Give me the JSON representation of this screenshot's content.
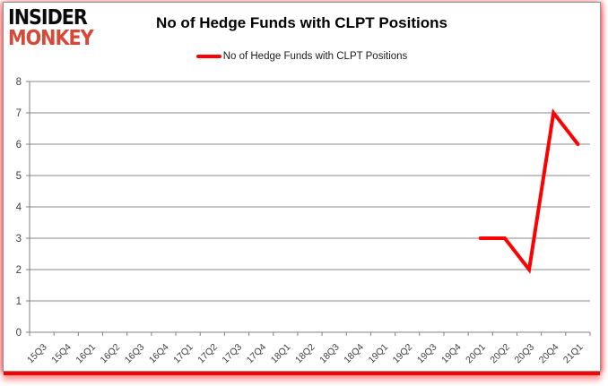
{
  "brand": {
    "line1": "INSIDER",
    "line2": "MONKEY",
    "accent_color": "#d64937"
  },
  "header": {
    "title": "No of Hedge Funds with CLPT Positions"
  },
  "legend": {
    "label": "No of Hedge Funds with CLPT Positions",
    "swatch_color": "#ff0000"
  },
  "chart_data": {
    "type": "line",
    "title": "No of Hedge Funds with CLPT Positions",
    "xlabel": "",
    "ylabel": "",
    "categories": [
      "15Q3",
      "15Q4",
      "16Q1",
      "16Q2",
      "16Q3",
      "16Q4",
      "17Q1",
      "17Q2",
      "17Q3",
      "17Q4",
      "18Q1",
      "18Q2",
      "18Q3",
      "18Q4",
      "19Q1",
      "19Q2",
      "19Q3",
      "19Q4",
      "20Q1",
      "20Q2",
      "20Q3",
      "20Q4",
      "21Q1"
    ],
    "series": [
      {
        "name": "No of Hedge Funds with CLPT Positions",
        "color": "#ff0000",
        "values": [
          null,
          null,
          null,
          null,
          null,
          null,
          null,
          null,
          null,
          null,
          null,
          null,
          null,
          null,
          null,
          null,
          null,
          null,
          3,
          3,
          2,
          7,
          6
        ]
      }
    ],
    "ylim": [
      0,
      8
    ],
    "ytick_step": 1,
    "yticks": [
      0,
      1,
      2,
      3,
      4,
      5,
      6,
      7,
      8
    ],
    "grid": true,
    "legend_position": "top",
    "grid_color": "#898989",
    "axis_color": "#808080",
    "tick_label_color": "#3f3f3f"
  }
}
